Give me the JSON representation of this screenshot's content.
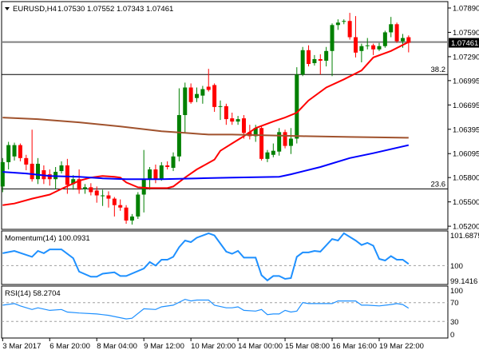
{
  "chart_data": {
    "type": "candlestick",
    "header": {
      "symbol_timeframe": "EURUSD,H4",
      "ohlc_text": "1.07530 1.07552 1.07343 1.07461"
    },
    "colors": {
      "bull": "#008000",
      "bear": "#ff0000",
      "ma_fast": "#ff0000",
      "ma_mid": "#0000ff",
      "ma_slow": "#a0522d",
      "indicator_line": "#1e90ff",
      "current_price_box": "#000000"
    },
    "price_axis": {
      "ticks": [
        "1.07890",
        "1.07590",
        "1.07290",
        "1.06995",
        "1.06695",
        "1.06395",
        "1.06095",
        "1.05800",
        "1.05500",
        "1.05200"
      ],
      "range": [
        1.052,
        1.0789
      ]
    },
    "current_price": "1.07461",
    "levels": [
      {
        "label": "38.2",
        "price": 1.0707
      },
      {
        "label": "23.6",
        "price": 1.0566
      }
    ],
    "grey_level_price": 1.0747,
    "time_axis": {
      "labels": [
        "3 Mar 2017",
        "6 Mar 20:00",
        "8 Mar 04:00",
        "9 Mar 12:00",
        "10 Mar 20:00",
        "14 Mar 00:00",
        "15 Mar 08:00",
        "16 Mar 16:00",
        "19 Mar 22:00"
      ]
    },
    "candles_ohlc": [
      [
        1.0569,
        1.0604,
        1.0562,
        1.0599
      ],
      [
        1.0599,
        1.0624,
        1.059,
        1.062
      ],
      [
        1.0606,
        1.0623,
        1.0601,
        1.062
      ],
      [
        1.062,
        1.0622,
        1.06,
        1.0604
      ],
      [
        1.0604,
        1.0608,
        1.0589,
        1.0596
      ],
      [
        1.0597,
        1.0639,
        1.0575,
        1.0578
      ],
      [
        1.0578,
        1.0604,
        1.0572,
        1.0597
      ],
      [
        1.0589,
        1.0595,
        1.0572,
        1.0578
      ],
      [
        1.0584,
        1.059,
        1.057,
        1.0578
      ],
      [
        1.0578,
        1.0593,
        1.0566,
        1.0587
      ],
      [
        1.0588,
        1.06,
        1.0585,
        1.0595
      ],
      [
        1.0595,
        1.0603,
        1.056,
        1.0571
      ],
      [
        1.0572,
        1.0583,
        1.0565,
        1.0578
      ],
      [
        1.0578,
        1.059,
        1.056,
        1.0565
      ],
      [
        1.0566,
        1.0572,
        1.056,
        1.0568
      ],
      [
        1.0568,
        1.0573,
        1.0558,
        1.0562
      ],
      [
        1.0564,
        1.0569,
        1.0549,
        1.0558
      ],
      [
        1.0557,
        1.0565,
        1.0545,
        1.0558
      ],
      [
        1.0558,
        1.0563,
        1.0543,
        1.0554
      ],
      [
        1.0554,
        1.0556,
        1.0532,
        1.0546
      ],
      [
        1.0546,
        1.0553,
        1.0539,
        1.0543
      ],
      [
        1.0543,
        1.0546,
        1.0523,
        1.0527
      ],
      [
        1.0527,
        1.0535,
        1.0522,
        1.0532
      ],
      [
        1.0532,
        1.0562,
        1.0529,
        1.0559
      ],
      [
        1.0559,
        1.0614,
        1.0537,
        1.0578
      ],
      [
        1.0578,
        1.0593,
        1.0565,
        1.059
      ],
      [
        1.059,
        1.0596,
        1.0573,
        1.0578
      ],
      [
        1.0578,
        1.0599,
        1.0576,
        1.0595
      ],
      [
        1.0595,
        1.06,
        1.059,
        1.0593
      ],
      [
        1.0592,
        1.0611,
        1.0588,
        1.0606
      ],
      [
        1.0606,
        1.069,
        1.06,
        1.0657
      ],
      [
        1.0657,
        1.0697,
        1.0635,
        1.0691
      ],
      [
        1.0691,
        1.0696,
        1.0671,
        1.0673
      ],
      [
        1.0678,
        1.0691,
        1.0673,
        1.0683
      ],
      [
        1.0681,
        1.0693,
        1.0671,
        1.0689
      ],
      [
        1.0692,
        1.0714,
        1.0686,
        1.0688
      ],
      [
        1.0694,
        1.0696,
        1.0661,
        1.0667
      ],
      [
        1.0668,
        1.0675,
        1.0651,
        1.0668
      ],
      [
        1.0668,
        1.0671,
        1.0645,
        1.0652
      ],
      [
        1.0653,
        1.066,
        1.0645,
        1.0649
      ],
      [
        1.0649,
        1.0656,
        1.0645,
        1.0652
      ],
      [
        1.0653,
        1.0657,
        1.0628,
        1.0635
      ],
      [
        1.0636,
        1.0645,
        1.0627,
        1.0631
      ],
      [
        1.0631,
        1.0645,
        1.0624,
        1.0641
      ],
      [
        1.0641,
        1.0643,
        1.0601,
        1.0603
      ],
      [
        1.0603,
        1.0614,
        1.0599,
        1.0611
      ],
      [
        1.0608,
        1.0622,
        1.0605,
        1.0613
      ],
      [
        1.0612,
        1.0641,
        1.0607,
        1.0636
      ],
      [
        1.0636,
        1.0639,
        1.0616,
        1.0619
      ],
      [
        1.0619,
        1.0641,
        1.0609,
        1.0628
      ],
      [
        1.0628,
        1.0716,
        1.0622,
        1.0707
      ],
      [
        1.0707,
        1.0741,
        1.0705,
        1.0737
      ],
      [
        1.0737,
        1.0743,
        1.0717,
        1.072
      ],
      [
        1.0721,
        1.0731,
        1.0718,
        1.0726
      ],
      [
        1.0726,
        1.0732,
        1.0707,
        1.0724
      ],
      [
        1.0724,
        1.0741,
        1.0717,
        1.0736
      ],
      [
        1.0736,
        1.077,
        1.0705,
        1.0768
      ],
      [
        1.0768,
        1.0775,
        1.0762,
        1.0771
      ],
      [
        1.0772,
        1.0775,
        1.0769,
        1.0773
      ],
      [
        1.0773,
        1.0783,
        1.075,
        1.0753
      ],
      [
        1.0753,
        1.0779,
        1.0728,
        1.0734
      ],
      [
        1.0736,
        1.0745,
        1.0722,
        1.0742
      ],
      [
        1.0742,
        1.0752,
        1.0738,
        1.0743
      ],
      [
        1.0743,
        1.0745,
        1.0731,
        1.0738
      ],
      [
        1.0738,
        1.0746,
        1.0736,
        1.0742
      ],
      [
        1.0742,
        1.0761,
        1.074,
        1.0759
      ],
      [
        1.0759,
        1.0778,
        1.0753,
        1.0769
      ],
      [
        1.0769,
        1.0771,
        1.0746,
        1.0748
      ],
      [
        1.0748,
        1.0757,
        1.074,
        1.0752
      ],
      [
        1.0753,
        1.07552,
        1.07343,
        1.07461
      ]
    ],
    "moving_averages": [
      {
        "role": "ma_fast",
        "points": [
          [
            0,
            1.0546
          ],
          [
            2,
            1.0548
          ],
          [
            5,
            1.0554
          ],
          [
            8,
            1.0559
          ],
          [
            10,
            1.0566
          ],
          [
            13,
            1.0576
          ],
          [
            15,
            1.058
          ],
          [
            17,
            1.0582
          ],
          [
            19,
            1.0581
          ],
          [
            20,
            1.058
          ],
          [
            21,
            1.0574
          ],
          [
            23,
            1.0568
          ],
          [
            25,
            1.0567
          ],
          [
            28,
            1.0567
          ],
          [
            29,
            1.0569
          ],
          [
            31,
            1.058
          ],
          [
            33,
            1.059
          ],
          [
            36,
            1.0602
          ],
          [
            37,
            1.0613
          ],
          [
            39,
            1.0622
          ],
          [
            41,
            1.0631
          ],
          [
            43,
            1.0641
          ],
          [
            46,
            1.0649
          ],
          [
            48,
            1.0654
          ],
          [
            50,
            1.066
          ],
          [
            52,
            1.0675
          ],
          [
            55,
            1.0691
          ],
          [
            58,
            1.0701
          ],
          [
            61,
            1.0712
          ],
          [
            63,
            1.0728
          ],
          [
            66,
            1.0736
          ],
          [
            69,
            1.0747
          ]
        ]
      },
      {
        "role": "ma_mid",
        "points": [
          [
            0,
            1.0587
          ],
          [
            4,
            1.0585
          ],
          [
            8,
            1.0582
          ],
          [
            13,
            1.0581
          ],
          [
            17,
            1.0579
          ],
          [
            21,
            1.0578
          ],
          [
            27,
            1.0578
          ],
          [
            33,
            1.0579
          ],
          [
            39,
            1.058
          ],
          [
            47,
            1.0581
          ],
          [
            49,
            1.0584
          ],
          [
            54,
            1.0593
          ],
          [
            59,
            1.0604
          ],
          [
            63,
            1.061
          ],
          [
            69,
            1.062
          ]
        ]
      },
      {
        "role": "ma_slow",
        "points": [
          [
            0,
            1.0654
          ],
          [
            6,
            1.0652
          ],
          [
            13,
            1.0648
          ],
          [
            20,
            1.0643
          ],
          [
            27,
            1.0637
          ],
          [
            31,
            1.0635
          ],
          [
            35,
            1.0633
          ],
          [
            39,
            1.0633
          ],
          [
            51,
            1.0631
          ],
          [
            59,
            1.063
          ],
          [
            69,
            1.0629
          ]
        ]
      }
    ],
    "indicators": [
      {
        "title": "Momentum(14) 100.0931",
        "ticks": [
          "101.6875",
          "100",
          "99.1416"
        ],
        "range": [
          99.1416,
          101.6875
        ],
        "levels": [
          100
        ],
        "points": [
          [
            0,
            100.65
          ],
          [
            2,
            100.77
          ],
          [
            5,
            100.46
          ],
          [
            6,
            100.77
          ],
          [
            7,
            100.65
          ],
          [
            8,
            100.85
          ],
          [
            10,
            100.85
          ],
          [
            12,
            100.39
          ],
          [
            13,
            99.69
          ],
          [
            15,
            99.42
          ],
          [
            16,
            99.42
          ],
          [
            17,
            99.58
          ],
          [
            19,
            99.65
          ],
          [
            20,
            99.46
          ],
          [
            21,
            99.46
          ],
          [
            24,
            99.85
          ],
          [
            25,
            100.19
          ],
          [
            26,
            100.0
          ],
          [
            27,
            100.31
          ],
          [
            28,
            100.31
          ],
          [
            29,
            100.46
          ],
          [
            30,
            100.96
          ],
          [
            31,
            101.31
          ],
          [
            32,
            101.23
          ],
          [
            33,
            101.46
          ],
          [
            35,
            101.69
          ],
          [
            36,
            101.58
          ],
          [
            38,
            100.73
          ],
          [
            39,
            100.62
          ],
          [
            40,
            100.77
          ],
          [
            41,
            100.42
          ],
          [
            43,
            100.42
          ],
          [
            44,
            99.5
          ],
          [
            45,
            99.23
          ],
          [
            46,
            99.46
          ],
          [
            47,
            99.46
          ],
          [
            48,
            99.31
          ],
          [
            49,
            99.35
          ],
          [
            50,
            100.46
          ],
          [
            51,
            100.69
          ],
          [
            52,
            100.69
          ],
          [
            53,
            100.77
          ],
          [
            54,
            100.73
          ],
          [
            56,
            101.39
          ],
          [
            57,
            101.31
          ],
          [
            58,
            101.69
          ],
          [
            60,
            101.31
          ],
          [
            61,
            101.08
          ],
          [
            62,
            101.19
          ],
          [
            63,
            101.04
          ],
          [
            64,
            100.35
          ],
          [
            65,
            100.27
          ],
          [
            66,
            100.5
          ],
          [
            67,
            100.31
          ],
          [
            68,
            100.31
          ],
          [
            69,
            100.09
          ]
        ]
      },
      {
        "title": "RSI(14) 58.2704",
        "ticks": [
          "100",
          "70",
          "30",
          "0"
        ],
        "range": [
          0,
          100
        ],
        "levels": [
          70,
          30
        ],
        "points": [
          [
            0,
            64.5
          ],
          [
            2,
            68
          ],
          [
            3,
            63
          ],
          [
            5,
            55.5
          ],
          [
            6,
            59
          ],
          [
            8,
            53.6
          ],
          [
            10,
            55.5
          ],
          [
            11,
            50
          ],
          [
            13,
            48
          ],
          [
            16,
            46
          ],
          [
            18,
            43
          ],
          [
            21,
            35.5
          ],
          [
            22,
            37
          ],
          [
            24,
            57
          ],
          [
            26,
            55.5
          ],
          [
            27,
            61
          ],
          [
            29,
            64.5
          ],
          [
            31,
            77
          ],
          [
            32,
            73.6
          ],
          [
            33,
            75.5
          ],
          [
            35,
            75.5
          ],
          [
            36,
            64.5
          ],
          [
            38,
            59
          ],
          [
            39,
            59
          ],
          [
            40,
            61
          ],
          [
            41,
            53.6
          ],
          [
            43,
            52
          ],
          [
            44,
            55.5
          ],
          [
            45,
            44.5
          ],
          [
            46,
            46
          ],
          [
            47,
            46
          ],
          [
            48,
            53.6
          ],
          [
            49,
            50
          ],
          [
            50,
            52
          ],
          [
            51,
            70
          ],
          [
            52,
            68
          ],
          [
            54,
            68
          ],
          [
            56,
            68
          ],
          [
            57,
            73.6
          ],
          [
            58,
            73.6
          ],
          [
            60,
            73.6
          ],
          [
            61,
            64.5
          ],
          [
            62,
            64.5
          ],
          [
            64,
            63
          ],
          [
            66,
            66
          ],
          [
            67,
            68
          ],
          [
            68,
            66
          ],
          [
            69,
            58.3
          ]
        ]
      }
    ]
  }
}
